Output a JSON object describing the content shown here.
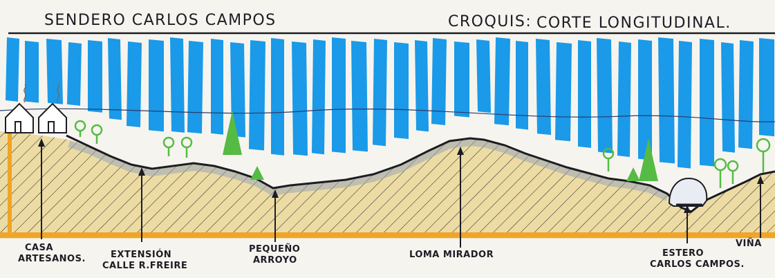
{
  "title": "SENDERO CARLOS CAMPOS",
  "croquis_label": "CROQUIS:",
  "section_type": "CORTE LONGITUDINAL.",
  "landmarks": [
    {
      "id": "casa",
      "lines": [
        "CASA",
        "ARTESANOS."
      ]
    },
    {
      "id": "extension",
      "lines": [
        "EXTENSIÓN",
        "CALLE R.FREIRE"
      ]
    },
    {
      "id": "arroyo",
      "lines": [
        "PEQUEÑO",
        "ARROYO"
      ]
    },
    {
      "id": "loma",
      "lines": [
        "LOMA MIRADOR"
      ]
    },
    {
      "id": "estero",
      "lines": [
        "ESTERO",
        "CARLOS CAMPOS."
      ]
    },
    {
      "id": "vina",
      "lines": [
        "VIÑA"
      ]
    }
  ],
  "colors": {
    "sky": "#1a9ae8",
    "ground_fill": "#ecdca4",
    "bedrock": "#f0a428",
    "ink": "#1c1c24",
    "vegetation": "#55bb44"
  }
}
